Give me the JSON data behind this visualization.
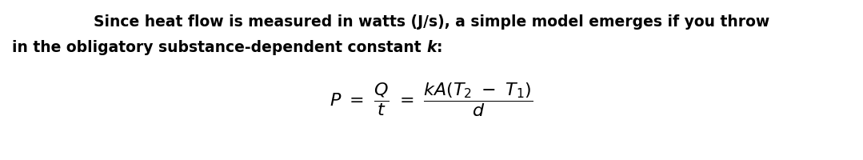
{
  "line1": "Since heat flow is measured in watts (J/s), a simple model emerges if you throw",
  "line2_prefix": "in the obligatory substance-dependent constant ",
  "line2_italic": "k",
  "line2_suffix": ":",
  "text_color": "#000000",
  "bg_color": "#ffffff",
  "text_fontsize": 13.5,
  "formula_fontsize": 16,
  "fig_width": 10.79,
  "fig_height": 2.01,
  "dpi": 100
}
